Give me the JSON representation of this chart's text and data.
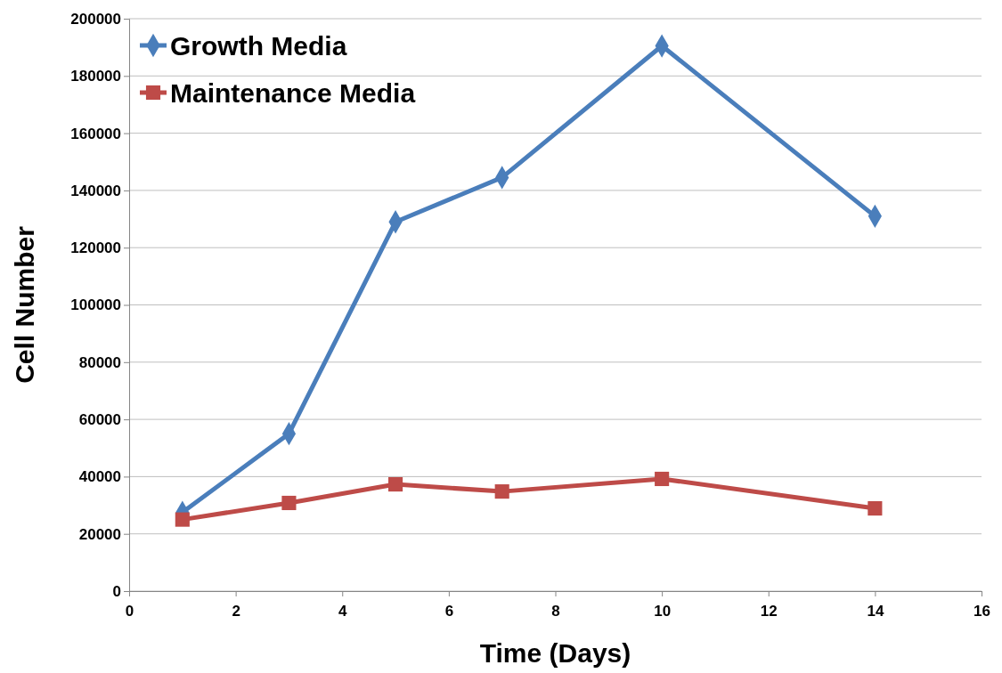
{
  "chart_data": {
    "type": "line",
    "xlabel": "Time (Days)",
    "ylabel": "Cell Number",
    "xlim": [
      0,
      16
    ],
    "xticks": [
      0,
      2,
      4,
      6,
      8,
      10,
      12,
      14,
      16
    ],
    "ylim": [
      0,
      200000
    ],
    "yticks": [
      0,
      20000,
      40000,
      60000,
      80000,
      100000,
      120000,
      140000,
      160000,
      180000,
      200000
    ],
    "grid": "y",
    "legend": "top left",
    "line_style": "solid",
    "series": [
      {
        "name": "Growth Media",
        "color": "#4a7ebb",
        "marker": "diamond",
        "x": [
          1,
          3,
          5,
          7,
          10,
          14
        ],
        "values": [
          27500,
          55000,
          129000,
          144500,
          190500,
          131000
        ]
      },
      {
        "name": "Maintenance Media",
        "color": "#be4b48",
        "marker": "square",
        "x": [
          1,
          3,
          5,
          7,
          10,
          14
        ],
        "values": [
          25000,
          30800,
          37300,
          34800,
          39200,
          28900
        ]
      }
    ]
  }
}
